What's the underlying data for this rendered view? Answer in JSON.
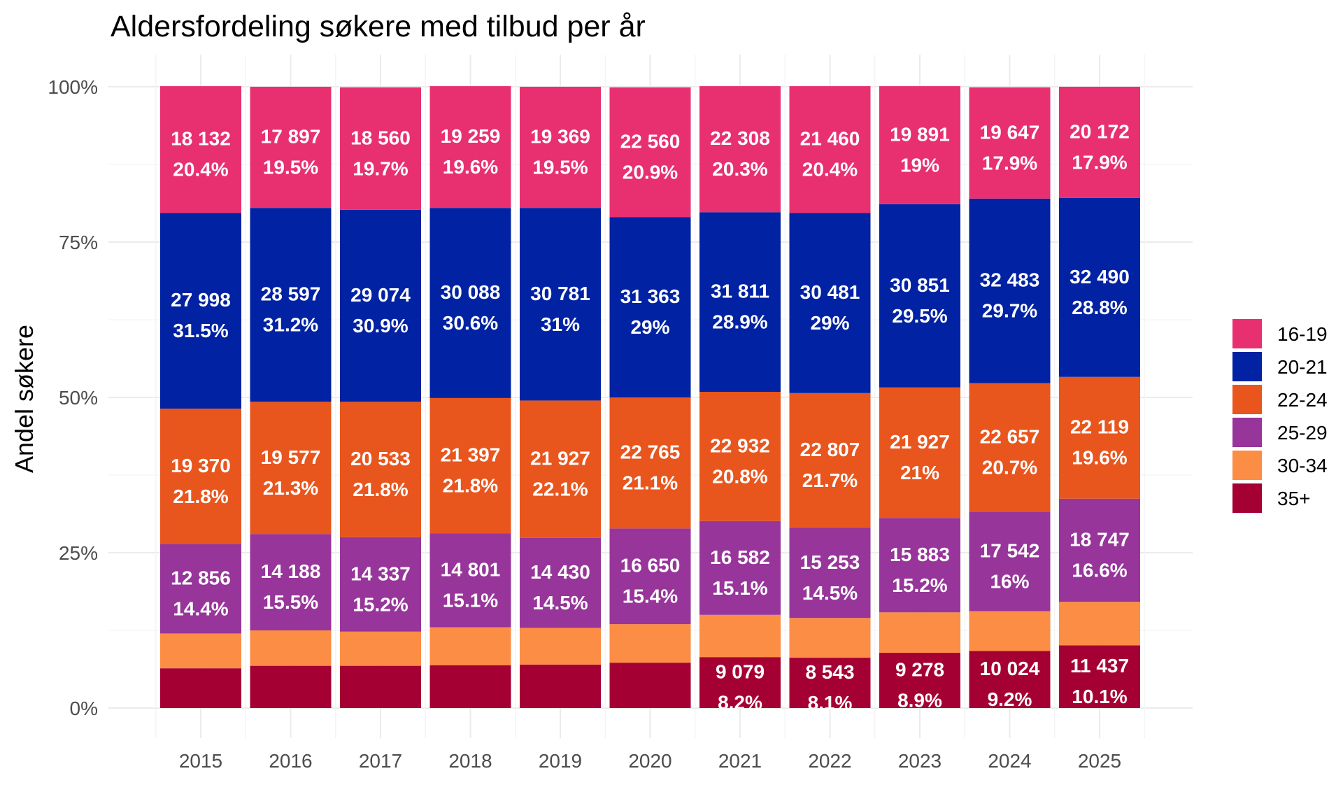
{
  "chart_data": {
    "type": "bar",
    "stacked": true,
    "normalized": true,
    "title": "Aldersfordeling søkere med tilbud per år",
    "xlabel": "",
    "ylabel": "Andel søkere",
    "ylim": [
      0,
      1
    ],
    "yticks": [
      "0%",
      "25%",
      "50%",
      "75%",
      "100%"
    ],
    "grid": true,
    "legend_position": "right",
    "categories": [
      "2015",
      "2016",
      "2017",
      "2018",
      "2019",
      "2020",
      "2021",
      "2022",
      "2023",
      "2024",
      "2025"
    ],
    "series": [
      {
        "name": "35+",
        "color": "#A50034",
        "values": [
          0.064,
          0.068,
          0.068,
          0.069,
          0.07,
          0.073,
          0.082,
          0.081,
          0.089,
          0.092,
          0.101
        ],
        "counts": [
          "",
          "",
          "",
          "",
          "",
          "",
          "9 079",
          "8 543",
          "9 278",
          "10 024",
          "11 437"
        ],
        "percent_labels": [
          "",
          "",
          "",
          "",
          "",
          "",
          "8.2%",
          "8.1%",
          "8.9%",
          "9.2%",
          "10.1%"
        ]
      },
      {
        "name": "30-34",
        "color": "#FC8D45",
        "values": [
          0.056,
          0.057,
          0.055,
          0.061,
          0.059,
          0.062,
          0.068,
          0.064,
          0.065,
          0.064,
          0.07
        ],
        "counts": [
          "",
          "",
          "",
          "",
          "",
          "",
          "",
          "",
          "",
          "",
          ""
        ],
        "percent_labels": [
          "",
          "",
          "",
          "",
          "",
          "",
          "",
          "",
          "",
          "",
          ""
        ]
      },
      {
        "name": "25-29",
        "color": "#97359A",
        "values": [
          0.144,
          0.155,
          0.152,
          0.151,
          0.145,
          0.154,
          0.151,
          0.145,
          0.152,
          0.16,
          0.166
        ],
        "counts": [
          "12 856",
          "14 188",
          "14 337",
          "14 801",
          "14 430",
          "16 650",
          "16 582",
          "15 253",
          "15 883",
          "17 542",
          "18 747"
        ],
        "percent_labels": [
          "14.4%",
          "15.5%",
          "15.2%",
          "15.1%",
          "14.5%",
          "15.4%",
          "15.1%",
          "14.5%",
          "15.2%",
          "16%",
          "16.6%"
        ]
      },
      {
        "name": "22-24",
        "color": "#E8561E",
        "values": [
          0.218,
          0.213,
          0.218,
          0.218,
          0.221,
          0.211,
          0.208,
          0.217,
          0.21,
          0.207,
          0.196
        ],
        "counts": [
          "19 370",
          "19 577",
          "20 533",
          "21 397",
          "21 927",
          "22 765",
          "22 932",
          "22 807",
          "21 927",
          "22 657",
          "22 119"
        ],
        "percent_labels": [
          "21.8%",
          "21.3%",
          "21.8%",
          "21.8%",
          "22.1%",
          "21.1%",
          "20.8%",
          "21.7%",
          "21%",
          "20.7%",
          "19.6%"
        ]
      },
      {
        "name": "20-21",
        "color": "#0022A3",
        "values": [
          0.315,
          0.312,
          0.309,
          0.306,
          0.31,
          0.29,
          0.289,
          0.29,
          0.295,
          0.297,
          0.288
        ],
        "counts": [
          "27 998",
          "28 597",
          "29 074",
          "30 088",
          "30 781",
          "31 363",
          "31 811",
          "30 481",
          "30 851",
          "32 483",
          "32 490"
        ],
        "percent_labels": [
          "31.5%",
          "31.2%",
          "30.9%",
          "30.6%",
          "31%",
          "29%",
          "28.9%",
          "29%",
          "29.5%",
          "29.7%",
          "28.8%"
        ]
      },
      {
        "name": "16-19",
        "color": "#E83071",
        "values": [
          0.204,
          0.195,
          0.197,
          0.196,
          0.195,
          0.209,
          0.203,
          0.204,
          0.19,
          0.179,
          0.179
        ],
        "counts": [
          "18 132",
          "17 897",
          "18 560",
          "19 259",
          "19 369",
          "22 560",
          "22 308",
          "21 460",
          "19 891",
          "19 647",
          "20 172"
        ],
        "percent_labels": [
          "20.4%",
          "19.5%",
          "19.7%",
          "19.6%",
          "19.5%",
          "20.9%",
          "20.3%",
          "20.4%",
          "19%",
          "17.9%",
          "17.9%"
        ]
      }
    ],
    "legend_order": [
      "16-19",
      "20-21",
      "22-24",
      "25-29",
      "30-34",
      "35+"
    ]
  }
}
